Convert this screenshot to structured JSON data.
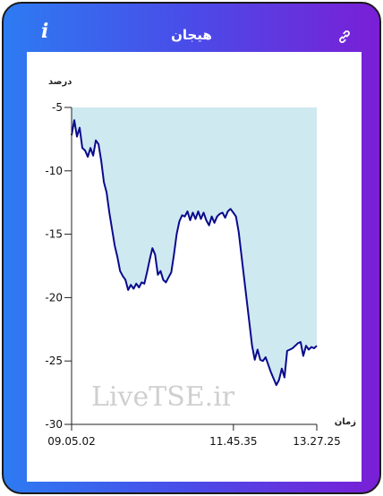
{
  "header": {
    "title": "هیجان",
    "info_icon": "i",
    "link_icon": "link-icon"
  },
  "watermark": "LiveTSE.ir",
  "colors": {
    "frame_left": "#2d7bf2",
    "frame_right": "#7a1fd6",
    "line": "#0a0a8c",
    "fill": "#cfe9f1"
  },
  "chart_data": {
    "type": "area",
    "ylabel": "درصد",
    "xlabel": "زمان",
    "ylim": [
      -30,
      -5
    ],
    "yticks": [
      -5,
      -10,
      -15,
      -20,
      -25,
      -30
    ],
    "xticks": [
      "09.05.02",
      "11.45.35",
      "13.27.25"
    ],
    "grid": false,
    "series": [
      {
        "values": [
          -7.2,
          -6.0,
          -7.3,
          -6.6,
          -8.2,
          -8.4,
          -8.9,
          -8.2,
          -8.8,
          -7.6,
          -7.9,
          -9.2,
          -10.9,
          -11.7,
          -13.3,
          -14.6,
          -15.9,
          -16.8,
          -17.9,
          -18.3,
          -18.6,
          -19.4,
          -19.0,
          -19.3,
          -18.9,
          -19.2,
          -18.8,
          -18.9,
          -18.0,
          -17.0,
          -16.1,
          -16.6,
          -18.2,
          -17.9,
          -18.6,
          -18.8,
          -18.4,
          -18.0,
          -16.6,
          -15.0,
          -14.0,
          -13.5,
          -13.6,
          -13.2,
          -13.9,
          -13.3,
          -13.8,
          -13.2,
          -13.8,
          -13.3,
          -13.9,
          -14.3,
          -13.6,
          -14.1,
          -13.6,
          -13.4,
          -13.3,
          -13.7,
          -13.2,
          -13.0,
          -13.3,
          -13.6,
          -14.8,
          -16.6,
          -18.4,
          -20.2,
          -22.0,
          -23.8,
          -24.9,
          -24.1,
          -24.9,
          -25.0,
          -24.7,
          -25.3,
          -25.9,
          -26.4,
          -26.9,
          -26.5,
          -25.6,
          -26.3,
          -24.2,
          -24.1,
          -24.0,
          -23.8,
          -23.6,
          -23.5,
          -24.6,
          -23.8,
          -24.1,
          -23.9,
          -24.0,
          -23.8
        ]
      }
    ]
  }
}
